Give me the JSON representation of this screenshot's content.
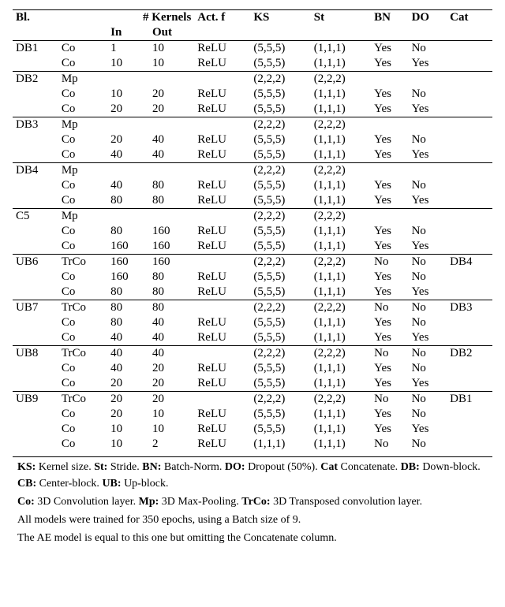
{
  "table": {
    "headers": {
      "bl": "Bl.",
      "op": "",
      "kernels": "# Kernels",
      "in": "In",
      "out": "Out",
      "act": "Act. f",
      "ks": "KS",
      "st": "St",
      "bn": "BN",
      "do": "DO",
      "cat": "Cat"
    },
    "rows": [
      {
        "top": true,
        "bl": "DB1",
        "op": "Co",
        "in": "1",
        "out": "10",
        "act": "ReLU",
        "ks": "(5,5,5)",
        "st": "(1,1,1)",
        "bn": "Yes",
        "do": "No",
        "cat": ""
      },
      {
        "bl": "",
        "op": "Co",
        "in": "10",
        "out": "10",
        "act": "ReLU",
        "ks": "(5,5,5)",
        "st": "(1,1,1)",
        "bn": "Yes",
        "do": "Yes",
        "cat": ""
      },
      {
        "top": true,
        "bl": "DB2",
        "op": "Mp",
        "in": "",
        "out": "",
        "act": "",
        "ks": "(2,2,2)",
        "st": "(2,2,2)",
        "bn": "",
        "do": "",
        "cat": ""
      },
      {
        "bl": "",
        "op": "Co",
        "in": "10",
        "out": "20",
        "act": "ReLU",
        "ks": "(5,5,5)",
        "st": "(1,1,1)",
        "bn": "Yes",
        "do": "No",
        "cat": ""
      },
      {
        "bl": "",
        "op": "Co",
        "in": "20",
        "out": "20",
        "act": "ReLU",
        "ks": "(5,5,5)",
        "st": "(1,1,1)",
        "bn": "Yes",
        "do": "Yes",
        "cat": ""
      },
      {
        "top": true,
        "bl": "DB3",
        "op": "Mp",
        "in": "",
        "out": "",
        "act": "",
        "ks": "(2,2,2)",
        "st": "(2,2,2)",
        "bn": "",
        "do": "",
        "cat": ""
      },
      {
        "bl": "",
        "op": "Co",
        "in": "20",
        "out": "40",
        "act": "ReLU",
        "ks": "(5,5,5)",
        "st": "(1,1,1)",
        "bn": "Yes",
        "do": "No",
        "cat": ""
      },
      {
        "bl": "",
        "op": "Co",
        "in": "40",
        "out": "40",
        "act": "ReLU",
        "ks": "(5,5,5)",
        "st": "(1,1,1)",
        "bn": "Yes",
        "do": "Yes",
        "cat": ""
      },
      {
        "top": true,
        "bl": "DB4",
        "op": "Mp",
        "in": "",
        "out": "",
        "act": "",
        "ks": "(2,2,2)",
        "st": "(2,2,2)",
        "bn": "",
        "do": "",
        "cat": ""
      },
      {
        "bl": "",
        "op": "Co",
        "in": "40",
        "out": "80",
        "act": "ReLU",
        "ks": "(5,5,5)",
        "st": "(1,1,1)",
        "bn": "Yes",
        "do": "No",
        "cat": ""
      },
      {
        "bl": "",
        "op": "Co",
        "in": "80",
        "out": "80",
        "act": "ReLU",
        "ks": "(5,5,5)",
        "st": "(1,1,1)",
        "bn": "Yes",
        "do": "Yes",
        "cat": ""
      },
      {
        "top": true,
        "bl": "C5",
        "op": "Mp",
        "in": "",
        "out": "",
        "act": "",
        "ks": "(2,2,2)",
        "st": "(2,2,2)",
        "bn": "",
        "do": "",
        "cat": ""
      },
      {
        "bl": "",
        "op": "Co",
        "in": "80",
        "out": "160",
        "act": "ReLU",
        "ks": "(5,5,5)",
        "st": "(1,1,1)",
        "bn": "Yes",
        "do": "No",
        "cat": ""
      },
      {
        "bl": "",
        "op": "Co",
        "in": "160",
        "out": "160",
        "act": "ReLU",
        "ks": "(5,5,5)",
        "st": "(1,1,1)",
        "bn": "Yes",
        "do": "Yes",
        "cat": ""
      },
      {
        "top": true,
        "bl": "UB6",
        "op": "TrCo",
        "in": "160",
        "out": "160",
        "act": "",
        "ks": "(2,2,2)",
        "st": "(2,2,2)",
        "bn": "No",
        "do": "No",
        "cat": "DB4"
      },
      {
        "bl": "",
        "op": "Co",
        "in": "160",
        "out": "80",
        "act": "ReLU",
        "ks": "(5,5,5)",
        "st": "(1,1,1)",
        "bn": "Yes",
        "do": "No",
        "cat": ""
      },
      {
        "bl": "",
        "op": "Co",
        "in": "80",
        "out": "80",
        "act": "ReLU",
        "ks": "(5,5,5)",
        "st": "(1,1,1)",
        "bn": "Yes",
        "do": "Yes",
        "cat": ""
      },
      {
        "top": true,
        "bl": "UB7",
        "op": "TrCo",
        "in": "80",
        "out": "80",
        "act": "",
        "ks": "(2,2,2)",
        "st": "(2,2,2)",
        "bn": "No",
        "do": "No",
        "cat": "DB3"
      },
      {
        "bl": "",
        "op": "Co",
        "in": "80",
        "out": "40",
        "act": "ReLU",
        "ks": "(5,5,5)",
        "st": "(1,1,1)",
        "bn": "Yes",
        "do": "No",
        "cat": ""
      },
      {
        "bl": "",
        "op": "Co",
        "in": "40",
        "out": "40",
        "act": "ReLU",
        "ks": "(5,5,5)",
        "st": "(1,1,1)",
        "bn": "Yes",
        "do": "Yes",
        "cat": ""
      },
      {
        "top": true,
        "bl": "UB8",
        "op": "TrCo",
        "in": "40",
        "out": "40",
        "act": "",
        "ks": "(2,2,2)",
        "st": "(2,2,2)",
        "bn": "No",
        "do": "No",
        "cat": "DB2"
      },
      {
        "bl": "",
        "op": "Co",
        "in": "40",
        "out": "20",
        "act": "ReLU",
        "ks": "(5,5,5)",
        "st": "(1,1,1)",
        "bn": "Yes",
        "do": "No",
        "cat": ""
      },
      {
        "bl": "",
        "op": "Co",
        "in": "20",
        "out": "20",
        "act": "ReLU",
        "ks": "(5,5,5)",
        "st": "(1,1,1)",
        "bn": "Yes",
        "do": "Yes",
        "cat": ""
      },
      {
        "top": true,
        "bl": "UB9",
        "op": "TrCo",
        "in": "20",
        "out": "20",
        "act": "",
        "ks": "(2,2,2)",
        "st": "(2,2,2)",
        "bn": "No",
        "do": "No",
        "cat": "DB1"
      },
      {
        "bl": "",
        "op": "Co",
        "in": "20",
        "out": "10",
        "act": "ReLU",
        "ks": "(5,5,5)",
        "st": "(1,1,1)",
        "bn": "Yes",
        "do": "No",
        "cat": ""
      },
      {
        "bl": "",
        "op": "Co",
        "in": "10",
        "out": "10",
        "act": "ReLU",
        "ks": "(5,5,5)",
        "st": "(1,1,1)",
        "bn": "Yes",
        "do": "Yes",
        "cat": ""
      },
      {
        "bl": "",
        "op": "Co",
        "in": "10",
        "out": "2",
        "act": "ReLU",
        "ks": "(1,1,1)",
        "st": "(1,1,1)",
        "bn": "No",
        "do": "No",
        "cat": ""
      }
    ]
  },
  "footer": {
    "lines": [
      [
        {
          "b": true,
          "t": "KS:"
        },
        {
          "t": " Kernel size. "
        },
        {
          "b": true,
          "t": "St:"
        },
        {
          "t": " Stride. "
        },
        {
          "b": true,
          "t": "BN:"
        },
        {
          "t": " Batch-Norm. "
        },
        {
          "b": true,
          "t": "DO:"
        },
        {
          "t": " Dropout (50%). "
        },
        {
          "b": true,
          "t": "Cat"
        },
        {
          "t": " Concatenate. "
        },
        {
          "b": true,
          "t": "DB:"
        },
        {
          "t": " Down-block. "
        },
        {
          "b": true,
          "t": "CB:"
        },
        {
          "t": " Center-block. "
        },
        {
          "b": true,
          "t": "UB:"
        },
        {
          "t": " Up-block."
        }
      ],
      [
        {
          "b": true,
          "t": "Co:"
        },
        {
          "t": " 3D Convolution layer. "
        },
        {
          "b": true,
          "t": "Mp:"
        },
        {
          "t": " 3D Max-Pooling. "
        },
        {
          "b": true,
          "t": "TrCo:"
        },
        {
          "t": " 3D Transposed convolution layer."
        }
      ],
      [
        {
          "t": "All models were trained for 350 epochs, using a Batch size of 9."
        }
      ],
      [
        {
          "t": "The AE model is equal to this one but omitting the Concatenate column."
        }
      ]
    ]
  }
}
